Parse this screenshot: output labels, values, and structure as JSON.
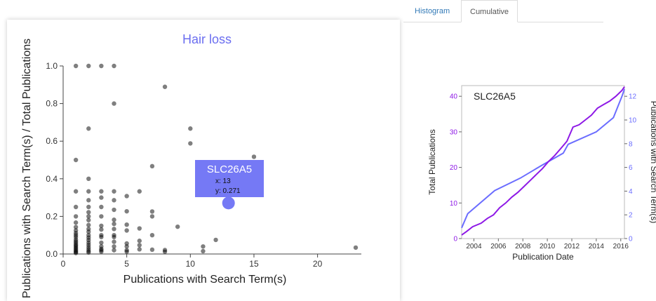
{
  "tabs": {
    "histogram": "Histogram",
    "cumulative": "Cumulative"
  },
  "colors": {
    "purple": "#8e19e6",
    "blue": "#6b6dff",
    "tooltip": "#7579f5",
    "title": "#6b6ef0"
  },
  "chart_data": [
    {
      "type": "scatter",
      "title": "Hair loss",
      "xlabel": "Publications with Search Term(s)",
      "ylabel": "Publications with Search Term(s) / Total Publications",
      "xlim": [
        0,
        23
      ],
      "ylim": [
        0,
        1.0
      ],
      "xticks": [
        "0",
        "5",
        "10",
        "15",
        "20"
      ],
      "yticks": [
        "0.0",
        "0.2",
        "0.4",
        "0.6",
        "0.8",
        "1.0"
      ],
      "points": [
        [
          1,
          1.0
        ],
        [
          1,
          0.5
        ],
        [
          1,
          0.333
        ],
        [
          1,
          0.25
        ],
        [
          1,
          0.2
        ],
        [
          1,
          0.167
        ],
        [
          1,
          0.143
        ],
        [
          1,
          0.125
        ],
        [
          1,
          0.111
        ],
        [
          1,
          0.1
        ],
        [
          1,
          0.09
        ],
        [
          1,
          0.077
        ],
        [
          1,
          0.067
        ],
        [
          1,
          0.059
        ],
        [
          1,
          0.05
        ],
        [
          1,
          0.043
        ],
        [
          1,
          0.036
        ],
        [
          1,
          0.029
        ],
        [
          1,
          0.022
        ],
        [
          1,
          0.015
        ],
        [
          1,
          0.01
        ],
        [
          1,
          0.005
        ],
        [
          2,
          1.0
        ],
        [
          2,
          0.667
        ],
        [
          2,
          0.4
        ],
        [
          2,
          0.333
        ],
        [
          2,
          0.286
        ],
        [
          2,
          0.25
        ],
        [
          2,
          0.222
        ],
        [
          2,
          0.2
        ],
        [
          2,
          0.18
        ],
        [
          2,
          0.154
        ],
        [
          2,
          0.133
        ],
        [
          2,
          0.118
        ],
        [
          2,
          0.1
        ],
        [
          2,
          0.087
        ],
        [
          2,
          0.074
        ],
        [
          2,
          0.06
        ],
        [
          2,
          0.048
        ],
        [
          2,
          0.036
        ],
        [
          2,
          0.025
        ],
        [
          2,
          0.015
        ],
        [
          2,
          0.008
        ],
        [
          3,
          1.0
        ],
        [
          3,
          0.333
        ],
        [
          3,
          0.3
        ],
        [
          3,
          0.25
        ],
        [
          3,
          0.2
        ],
        [
          3,
          0.15
        ],
        [
          3,
          0.13
        ],
        [
          3,
          0.1
        ],
        [
          3,
          0.09
        ],
        [
          3,
          0.06
        ],
        [
          3,
          0.04
        ],
        [
          3,
          0.027
        ],
        [
          3,
          0.02
        ],
        [
          3,
          0.012
        ],
        [
          4,
          1.0
        ],
        [
          4,
          0.8
        ],
        [
          4,
          0.333
        ],
        [
          4,
          0.286
        ],
        [
          4,
          0.235
        ],
        [
          4,
          0.182
        ],
        [
          4,
          0.16
        ],
        [
          4,
          0.133
        ],
        [
          4,
          0.1
        ],
        [
          4,
          0.09
        ],
        [
          4,
          0.065
        ],
        [
          4,
          0.04
        ],
        [
          4,
          0.02
        ],
        [
          5,
          0.308
        ],
        [
          5,
          0.227
        ],
        [
          5,
          0.156
        ],
        [
          5,
          0.125
        ],
        [
          5,
          0.056
        ],
        [
          5,
          0.04
        ],
        [
          5,
          0.02
        ],
        [
          5,
          0.012
        ],
        [
          6,
          0.333
        ],
        [
          6,
          0.136
        ],
        [
          6,
          0.07
        ],
        [
          6,
          0.047
        ],
        [
          6,
          0.025
        ],
        [
          7,
          0.467
        ],
        [
          7,
          0.226
        ],
        [
          7,
          0.2
        ],
        [
          7,
          0.1
        ],
        [
          7,
          0.023
        ],
        [
          8,
          0.889
        ],
        [
          8,
          0.021
        ],
        [
          8,
          0.012
        ],
        [
          9,
          0.145
        ],
        [
          10,
          0.667
        ],
        [
          10,
          0.588
        ],
        [
          11,
          0.04
        ],
        [
          11,
          0.015
        ],
        [
          12,
          0.075
        ],
        [
          15,
          0.517
        ],
        [
          23,
          0.034
        ]
      ],
      "highlight": {
        "label": "SLC26A5",
        "x": 13,
        "y": 0.271,
        "x_text": "x: 13",
        "y_text": "y: 0.271"
      }
    },
    {
      "type": "line",
      "title": "SLC26A5",
      "xlabel": "Publication Date",
      "ylabel_left": "Total Publications",
      "ylabel_right": "Publications with Search Term(s)",
      "xlim": [
        2003,
        2016.3
      ],
      "ylim_left": [
        0,
        43
      ],
      "ylim_right": [
        0,
        12.9
      ],
      "xticks": [
        "2004",
        "2006",
        "2008",
        "2010",
        "2012",
        "2014",
        "2016"
      ],
      "yticks_left": [
        "0",
        "10",
        "20",
        "30",
        "40"
      ],
      "yticks_right": [
        "0",
        "2",
        "4",
        "6",
        "8",
        "10",
        "12"
      ],
      "series": [
        {
          "axis": "left",
          "color": "#6b6dff",
          "x": [
            2003.0,
            2003.5,
            2005.7,
            2007.8,
            2009.5,
            2011.3,
            2011.7,
            2014.0,
            2015.4,
            2016.1,
            2016.3
          ],
          "y": [
            3,
            7,
            13.5,
            17,
            20.5,
            24,
            26.5,
            30,
            34,
            40,
            42
          ]
        },
        {
          "axis": "right",
          "color": "#8e19e6",
          "x": [
            2003.0,
            2003.4,
            2003.9,
            2004.6,
            2005.1,
            2005.6,
            2006.1,
            2006.6,
            2007.1,
            2007.6,
            2008.1,
            2008.6,
            2009.1,
            2009.6,
            2010.1,
            2010.6,
            2011.1,
            2011.6,
            2012.1,
            2012.6,
            2013.1,
            2013.6,
            2014.1,
            2014.6,
            2015.1,
            2015.6,
            2016.1,
            2016.3
          ],
          "y": [
            0.3,
            0.6,
            1.0,
            1.3,
            1.7,
            2.0,
            2.6,
            3.0,
            3.5,
            3.9,
            4.4,
            4.9,
            5.4,
            5.9,
            6.5,
            7.0,
            7.6,
            8.2,
            9.4,
            9.6,
            10.0,
            10.4,
            11.0,
            11.3,
            11.6,
            12.0,
            12.5,
            12.8
          ]
        }
      ]
    }
  ]
}
